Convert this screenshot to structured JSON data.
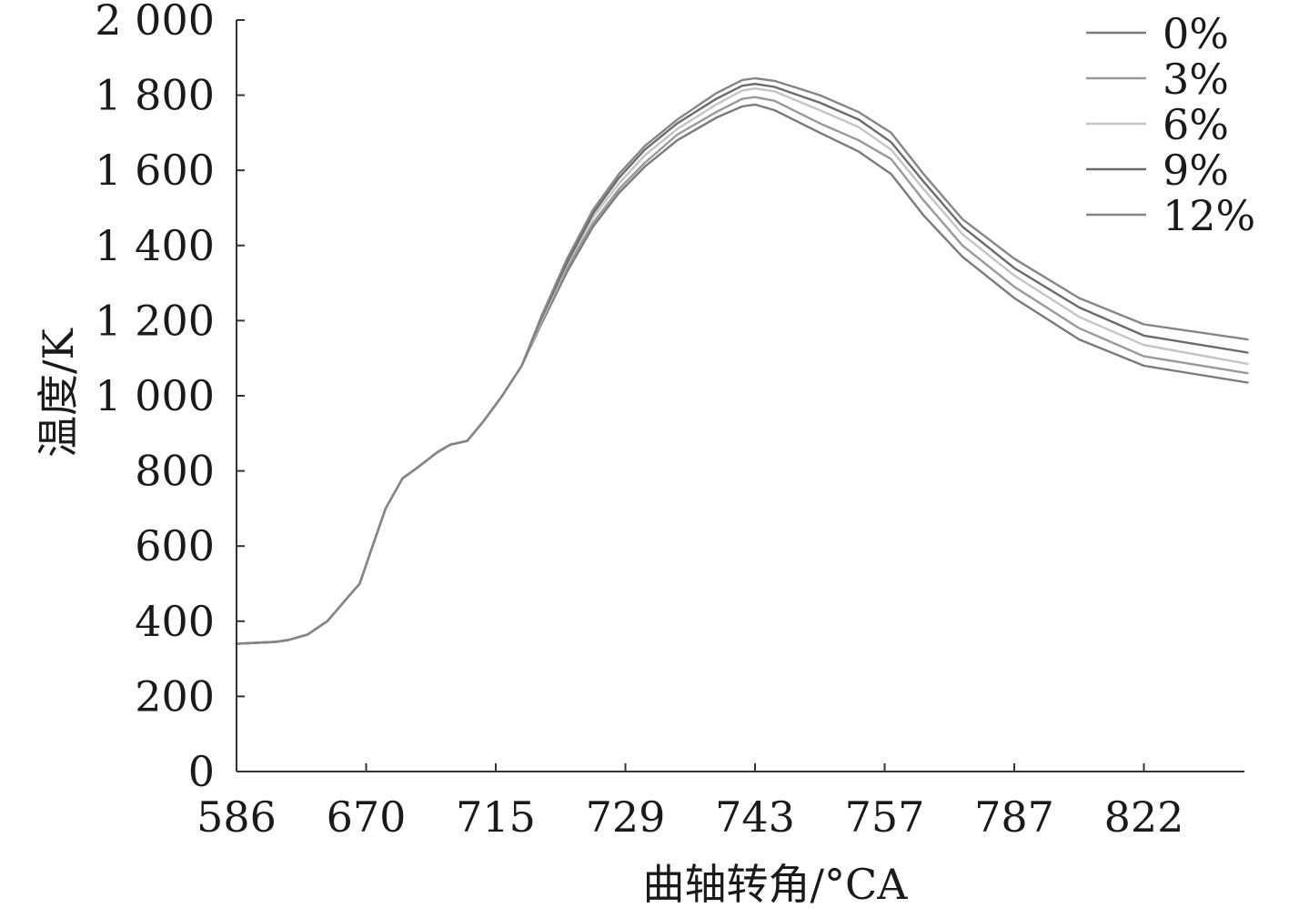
{
  "chart_data": {
    "type": "line",
    "title": "",
    "xlabel": "曲轴转角/°CA",
    "ylabel": "温度/K",
    "x_tick_labels": [
      "586",
      "670",
      "715",
      "729",
      "743",
      "757",
      "787",
      "822"
    ],
    "y_tick_labels": [
      "0",
      "200",
      "400",
      "600",
      "800",
      "1 000",
      "1 200",
      "1 400",
      "1 600",
      "1 800",
      "2 000"
    ],
    "y_ticks": [
      0,
      200,
      400,
      600,
      800,
      1000,
      1200,
      1400,
      1600,
      1800,
      2000
    ],
    "ylim": [
      0,
      2000
    ],
    "x_category_range": [
      0,
      7.8
    ],
    "grid": false,
    "legend_position": "top-right",
    "shared_points": [
      [
        0.0,
        340
      ],
      [
        0.3,
        345
      ],
      [
        0.4,
        350
      ],
      [
        0.55,
        365
      ],
      [
        0.7,
        400
      ],
      [
        0.85,
        460
      ],
      [
        0.95,
        500
      ],
      [
        1.05,
        600
      ],
      [
        1.15,
        700
      ],
      [
        1.28,
        780
      ],
      [
        1.4,
        810
      ],
      [
        1.55,
        850
      ],
      [
        1.65,
        870
      ],
      [
        1.78,
        880
      ],
      [
        1.9,
        930
      ],
      [
        2.05,
        1000
      ],
      [
        2.2,
        1080
      ]
    ],
    "series": [
      {
        "name": "0%",
        "color": "#7a7a7a",
        "points": [
          [
            2.35,
            1190
          ],
          [
            2.55,
            1330
          ],
          [
            2.75,
            1450
          ],
          [
            2.95,
            1540
          ],
          [
            3.15,
            1610
          ],
          [
            3.4,
            1680
          ],
          [
            3.7,
            1740
          ],
          [
            3.9,
            1770
          ],
          [
            4.0,
            1775
          ],
          [
            4.15,
            1760
          ],
          [
            4.5,
            1700
          ],
          [
            4.8,
            1650
          ],
          [
            5.05,
            1590
          ],
          [
            5.3,
            1480
          ],
          [
            5.6,
            1370
          ],
          [
            6.0,
            1260
          ],
          [
            6.5,
            1150
          ],
          [
            7.0,
            1080
          ],
          [
            7.8,
            1035
          ]
        ]
      },
      {
        "name": "3%",
        "color": "#999999",
        "points": [
          [
            2.35,
            1195
          ],
          [
            2.55,
            1340
          ],
          [
            2.75,
            1460
          ],
          [
            2.95,
            1550
          ],
          [
            3.15,
            1620
          ],
          [
            3.4,
            1695
          ],
          [
            3.7,
            1755
          ],
          [
            3.9,
            1790
          ],
          [
            4.0,
            1795
          ],
          [
            4.15,
            1785
          ],
          [
            4.5,
            1725
          ],
          [
            4.8,
            1680
          ],
          [
            5.05,
            1630
          ],
          [
            5.3,
            1520
          ],
          [
            5.6,
            1400
          ],
          [
            6.0,
            1290
          ],
          [
            6.5,
            1180
          ],
          [
            7.0,
            1105
          ],
          [
            7.8,
            1060
          ]
        ]
      },
      {
        "name": "6%",
        "color": "#c4c4c4",
        "points": [
          [
            2.35,
            1200
          ],
          [
            2.55,
            1350
          ],
          [
            2.75,
            1475
          ],
          [
            2.95,
            1565
          ],
          [
            3.15,
            1640
          ],
          [
            3.4,
            1710
          ],
          [
            3.7,
            1775
          ],
          [
            3.9,
            1812
          ],
          [
            4.0,
            1818
          ],
          [
            4.15,
            1810
          ],
          [
            4.5,
            1760
          ],
          [
            4.8,
            1715
          ],
          [
            5.05,
            1655
          ],
          [
            5.3,
            1550
          ],
          [
            5.6,
            1430
          ],
          [
            6.0,
            1320
          ],
          [
            6.5,
            1210
          ],
          [
            7.0,
            1135
          ],
          [
            7.8,
            1085
          ]
        ]
      },
      {
        "name": "9%",
        "color": "#6a6a6a",
        "points": [
          [
            2.35,
            1205
          ],
          [
            2.55,
            1355
          ],
          [
            2.75,
            1485
          ],
          [
            2.95,
            1580
          ],
          [
            3.15,
            1655
          ],
          [
            3.4,
            1725
          ],
          [
            3.7,
            1790
          ],
          [
            3.9,
            1825
          ],
          [
            4.0,
            1830
          ],
          [
            4.15,
            1822
          ],
          [
            4.5,
            1780
          ],
          [
            4.8,
            1735
          ],
          [
            5.05,
            1675
          ],
          [
            5.3,
            1570
          ],
          [
            5.6,
            1450
          ],
          [
            6.0,
            1340
          ],
          [
            6.5,
            1235
          ],
          [
            7.0,
            1160
          ],
          [
            7.8,
            1115
          ]
        ]
      },
      {
        "name": "12%",
        "color": "#858585",
        "points": [
          [
            2.35,
            1210
          ],
          [
            2.55,
            1365
          ],
          [
            2.75,
            1495
          ],
          [
            2.95,
            1590
          ],
          [
            3.15,
            1665
          ],
          [
            3.4,
            1735
          ],
          [
            3.7,
            1805
          ],
          [
            3.9,
            1840
          ],
          [
            4.0,
            1845
          ],
          [
            4.15,
            1838
          ],
          [
            4.5,
            1800
          ],
          [
            4.8,
            1755
          ],
          [
            5.05,
            1700
          ],
          [
            5.3,
            1590
          ],
          [
            5.6,
            1470
          ],
          [
            6.0,
            1365
          ],
          [
            6.5,
            1260
          ],
          [
            7.0,
            1190
          ],
          [
            7.8,
            1150
          ]
        ]
      }
    ]
  }
}
